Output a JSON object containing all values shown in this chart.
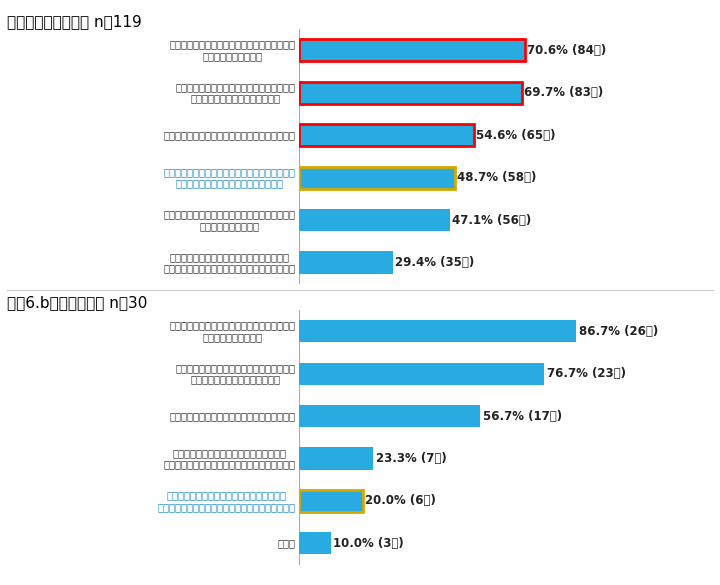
{
  "chart1": {
    "title": "『図８』　（医師） n＝119",
    "categories": [
      "主治医から、治療や副作用、治療期間に関する\n説明が十分にあること",
      "主治医に、治療や副作用、治療期間に関する\n不安や疲問などを相談できること",
      "病気や治療、医療費制度に関する情報を得ること",
      "身近で世話する人に、治療や副作用、治療期間に\n関する不安や疲問などを相談できること",
      "身近で世話する人が、病気や治療、医療費制度に\n関する情報を得ること",
      "同じ病気の患者同士で経験を伝え合ったり、\n情報交換したり、コミュニケーションをとること"
    ],
    "values": [
      70.6,
      69.7,
      54.6,
      48.7,
      47.1,
      29.4
    ],
    "labels": [
      "70.6% (84人)",
      "69.7% (83人)",
      "54.6% (65人)",
      "48.7% (58人)",
      "47.1% (56人)",
      "29.4% (35人)"
    ],
    "red_border": [
      0,
      1,
      2
    ],
    "yellow_border": [
      3
    ],
    "blue_label": [
      3
    ]
  },
  "chart2": {
    "title": "『図6.b』　（患者） n＝30",
    "categories": [
      "主治医から、治療や副作用、治療期間に関する\n説明が十分にあること",
      "主治医に、治療や副作用、治療期間に関する\n不安や疲問などを相談できること",
      "病気や治療、医療制度に関する情報を得ること",
      "同じ病気の患者同士で経験を伝え合ったり\n情報交換したり、コミュニケーションをとること",
      "身近で世話をしてくれる人に、治療や副作用\n治療期間に関する不安や疲問などを相談できること",
      "その他"
    ],
    "values": [
      86.7,
      76.7,
      56.7,
      23.3,
      20.0,
      10.0
    ],
    "labels": [
      "86.7% (26人)",
      "76.7% (23人)",
      "56.7% (17人)",
      "23.3% (7人)",
      "20.0% (6人)",
      "10.0% (3人)"
    ],
    "yellow_border": [
      4
    ],
    "blue_label": [
      4
    ]
  },
  "bg_color": "#ffffff",
  "bar_color": "#29abe2",
  "red_border_color": "#ff0000",
  "yellow_border_color": "#d4a800",
  "blue_text_color": "#1e8bc3",
  "label_fontsize": 8.5,
  "title_fontsize": 11,
  "cat_fontsize": 7.2,
  "bar_height": 0.52
}
